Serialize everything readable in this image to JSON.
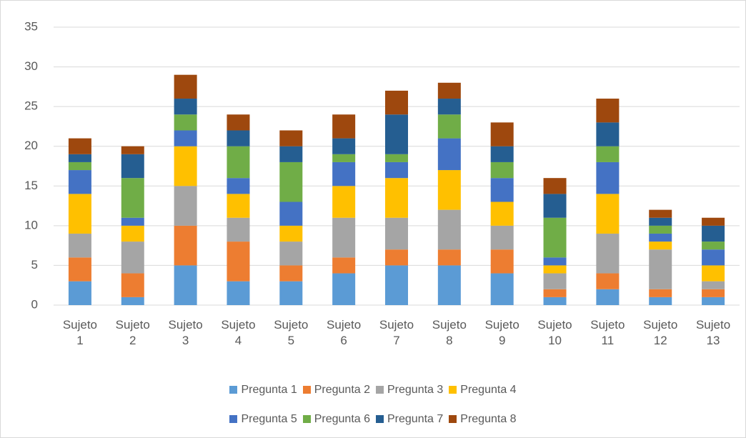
{
  "chart_data": {
    "type": "stacked_bar",
    "categories": [
      "Sujeto 1",
      "Sujeto 2",
      "Sujeto 3",
      "Sujeto 4",
      "Sujeto 5",
      "Sujeto 6",
      "Sujeto 7",
      "Sujeto 8",
      "Sujeto 9",
      "Sujeto 10",
      "Sujeto 11",
      "Sujeto 12",
      "Sujeto 13"
    ],
    "series": [
      {
        "name": "Pregunta 1",
        "color": "#5b9bd5",
        "values": [
          3,
          1,
          5,
          3,
          3,
          4,
          5,
          5,
          4,
          1,
          2,
          1,
          1
        ]
      },
      {
        "name": "Pregunta 2",
        "color": "#ed7d31",
        "values": [
          3,
          3,
          5,
          5,
          2,
          2,
          2,
          2,
          3,
          1,
          2,
          1,
          1
        ]
      },
      {
        "name": "Pregunta 3",
        "color": "#a5a5a5",
        "values": [
          3,
          4,
          5,
          3,
          3,
          5,
          4,
          5,
          3,
          2,
          5,
          5,
          1
        ]
      },
      {
        "name": "Pregunta 4",
        "color": "#ffc000",
        "values": [
          5,
          2,
          5,
          3,
          2,
          4,
          5,
          5,
          3,
          1,
          5,
          1,
          2
        ]
      },
      {
        "name": "Pregunta 5",
        "color": "#4472c4",
        "values": [
          3,
          1,
          2,
          2,
          3,
          3,
          2,
          4,
          3,
          1,
          4,
          1,
          2
        ]
      },
      {
        "name": "Pregunta 6",
        "color": "#70ad47",
        "values": [
          1,
          5,
          2,
          4,
          5,
          1,
          1,
          3,
          2,
          5,
          2,
          1,
          1
        ]
      },
      {
        "name": "Pregunta 7",
        "color": "#255e91",
        "values": [
          1,
          3,
          2,
          2,
          2,
          2,
          5,
          2,
          2,
          3,
          3,
          1,
          2
        ]
      },
      {
        "name": "Pregunta 8",
        "color": "#9e480e",
        "values": [
          2,
          1,
          3,
          2,
          2,
          3,
          3,
          2,
          3,
          2,
          3,
          1,
          1
        ]
      }
    ],
    "ylim": [
      0,
      35
    ],
    "yticks": [
      0,
      5,
      10,
      15,
      20,
      25,
      30,
      35
    ],
    "grid": true,
    "legend": "bottom"
  }
}
